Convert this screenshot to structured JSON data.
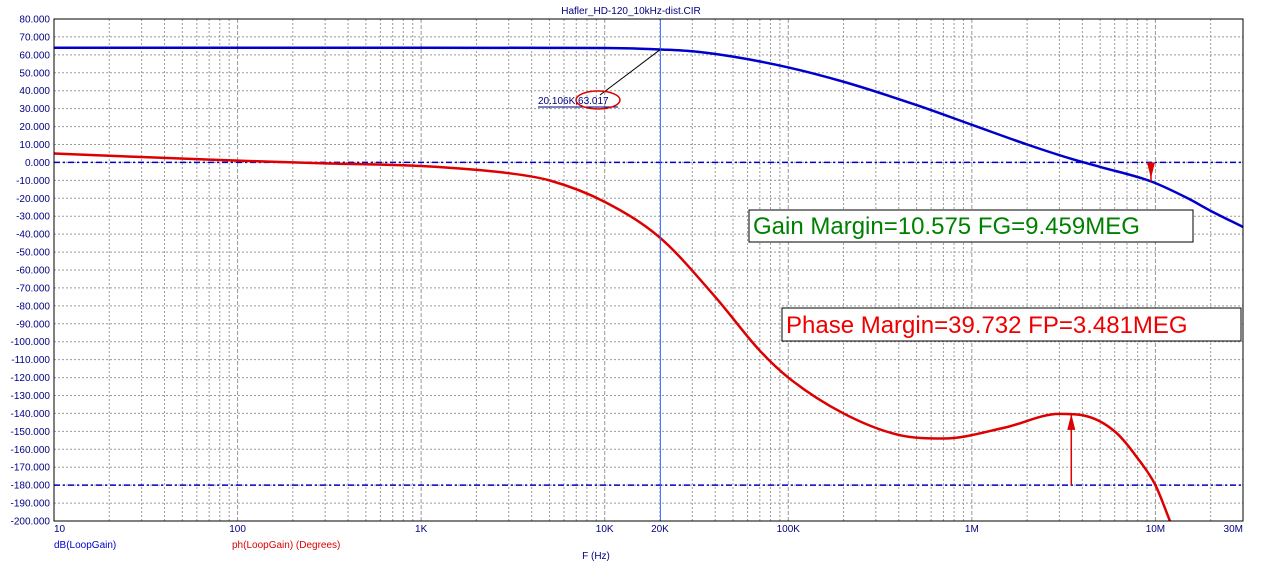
{
  "window": {
    "title": "Hafler_HD-120_10kHz-dist.CIR"
  },
  "chart_data": {
    "type": "line",
    "title": "Hafler_HD-120_10kHz-dist.CIR",
    "xlabel": "F (Hz)",
    "ylabel": "",
    "x_scale": "log",
    "xlim": [
      10,
      30000000
    ],
    "ylim": [
      -200,
      80
    ],
    "y_ticks": [
      "80.000",
      "70.000",
      "60.000",
      "50.000",
      "40.000",
      "30.000",
      "20.000",
      "10.000",
      "0.000",
      "-10.000",
      "-20.000",
      "-30.000",
      "-40.000",
      "-50.000",
      "-60.000",
      "-70.000",
      "-80.000",
      "-90.000",
      "-100.000",
      "-110.000",
      "-120.000",
      "-130.000",
      "-140.000",
      "-150.000",
      "-160.000",
      "-170.000",
      "-180.000",
      "-190.000",
      "-200.000"
    ],
    "x_ticks": [
      {
        "value": 10,
        "label": "10"
      },
      {
        "value": 100,
        "label": "100"
      },
      {
        "value": 1000,
        "label": "1K"
      },
      {
        "value": 10000,
        "label": "10K"
      },
      {
        "value": 20000,
        "label": "20K"
      },
      {
        "value": 100000,
        "label": "100K"
      },
      {
        "value": 1000000,
        "label": "1M"
      },
      {
        "value": 10000000,
        "label": "10M"
      },
      {
        "value": 30000000,
        "label": "30M"
      }
    ],
    "grid": true,
    "series": [
      {
        "name": "dB(LoopGain)",
        "color": "#0000cc",
        "x": [
          10,
          100,
          1000,
          5000,
          10000,
          15000,
          20106,
          30000,
          50000,
          100000,
          200000,
          500000,
          1000000,
          2000000,
          3481000,
          5000000,
          9459000,
          15000000,
          20000000,
          30000000
        ],
        "y": [
          64.0,
          64.0,
          64.0,
          63.9,
          63.8,
          63.5,
          63.017,
          62.0,
          59.0,
          53.0,
          45.0,
          32.0,
          21.0,
          10.0,
          2.0,
          -2.5,
          -10.575,
          -20.0,
          -27.0,
          -36.0
        ]
      },
      {
        "name": "ph(LoopGain) (Degrees)",
        "color": "#dd0000",
        "x": [
          10,
          30,
          100,
          300,
          1000,
          3000,
          5000,
          10000,
          20000,
          40000,
          70000,
          100000,
          200000,
          400000,
          700000,
          1500000,
          3000000,
          4000000,
          6000000,
          8000000,
          10000000,
          12000000
        ],
        "y": [
          5.0,
          3.0,
          1.0,
          -0.5,
          -2.0,
          -6.0,
          -10.0,
          -22.0,
          -42.0,
          -75.0,
          -105.0,
          -120.0,
          -140.0,
          -152.0,
          -154.0,
          -148.0,
          -140.268,
          -141.0,
          -150.0,
          -165.0,
          -180.0,
          -200.0
        ]
      }
    ],
    "reference_lines": [
      {
        "y": 0,
        "style": "dash-dot",
        "color": "#0000cc"
      },
      {
        "y": -180,
        "style": "dash-dot",
        "color": "#0000cc"
      }
    ],
    "cursor": {
      "x": 20106,
      "label": "20.106K,63.017",
      "point_y": 63.017
    },
    "annotations": {
      "gain_margin": {
        "text": "Gain Margin=10.575 FG=9.459MEG",
        "freq": 9459000,
        "value": -10.575
      },
      "phase_margin": {
        "text": "Phase Margin=39.732 FP=3.481MEG",
        "freq": 3481000,
        "phase": -140.268
      }
    },
    "legend": [
      {
        "label": "dB(LoopGain)",
        "color": "#0000cc"
      },
      {
        "label": "ph(LoopGain) (Degrees)",
        "color": "#dd0000"
      }
    ],
    "legend_position": "bottom-left"
  }
}
